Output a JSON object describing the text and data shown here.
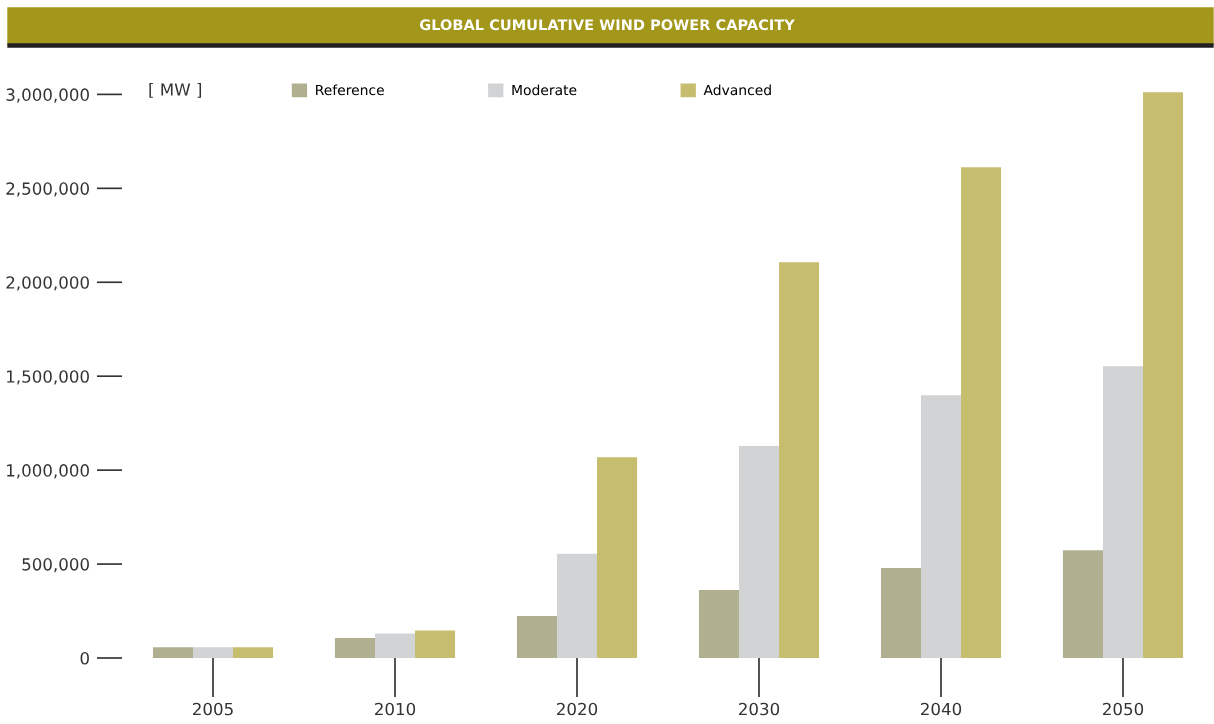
{
  "chart_data": {
    "type": "bar",
    "title": "GLOBAL CUMULATIVE WIND POWER CAPACITY",
    "ylabel": "[ MW ]",
    "categories": [
      "2005",
      "2010",
      "2020",
      "2030",
      "2040",
      "2050"
    ],
    "series": [
      {
        "name": "Reference",
        "color": "#b0af8f",
        "values": [
          57000,
          107000,
          224000,
          362000,
          479000,
          574000
        ]
      },
      {
        "name": "Moderate",
        "color": "#d2d3d5",
        "values": [
          57000,
          130000,
          555000,
          1128000,
          1399000,
          1553000
        ]
      },
      {
        "name": "Advanced",
        "color": "#c7bd6f",
        "values": [
          57000,
          146000,
          1069000,
          2106000,
          2612000,
          3011000
        ]
      }
    ],
    "ylim": [
      0,
      3050000
    ],
    "yticks": [
      {
        "value": 0,
        "label": "0"
      },
      {
        "value": 500000,
        "label": "500,000"
      },
      {
        "value": 1000000,
        "label": "1,000,000"
      },
      {
        "value": 1500000,
        "label": "1,500,000"
      },
      {
        "value": 2000000,
        "label": "2,000,000"
      },
      {
        "value": 2500000,
        "label": "2,500,000"
      },
      {
        "value": 3000000,
        "label": "3,000,000"
      }
    ],
    "grid": false,
    "legend": "top"
  }
}
